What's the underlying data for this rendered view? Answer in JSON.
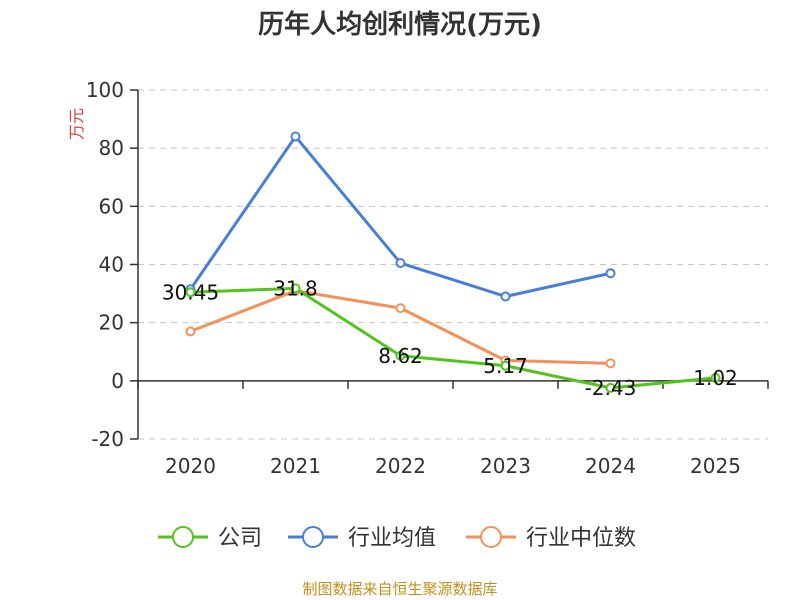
{
  "chart_data": {
    "type": "line",
    "title": "历年人均创利情况(万元)",
    "ylabel": "万元",
    "xlabel": "",
    "categories": [
      "2020",
      "2021",
      "2022",
      "2023",
      "2024",
      "2025"
    ],
    "ylim": [
      -20,
      100
    ],
    "yticks": [
      -20,
      0,
      20,
      40,
      60,
      80,
      100
    ],
    "grid": true,
    "legend_position": "bottom",
    "series": [
      {
        "name": "公司",
        "color": "#52c41a",
        "values": [
          30.45,
          31.8,
          8.62,
          5.17,
          -2.43,
          1.02
        ],
        "labels": [
          "30.45",
          "31.8",
          "8.62",
          "5.17",
          "-2.43",
          "1.02"
        ]
      },
      {
        "name": "行业均值",
        "color": "#4a7fd8",
        "values": [
          31.5,
          84,
          40.5,
          29,
          37,
          null
        ]
      },
      {
        "name": "行业中位数",
        "color": "#f4915a",
        "values": [
          17,
          31,
          25,
          7,
          6,
          null
        ]
      }
    ]
  },
  "source": "制图数据来自恒生聚源数据库"
}
